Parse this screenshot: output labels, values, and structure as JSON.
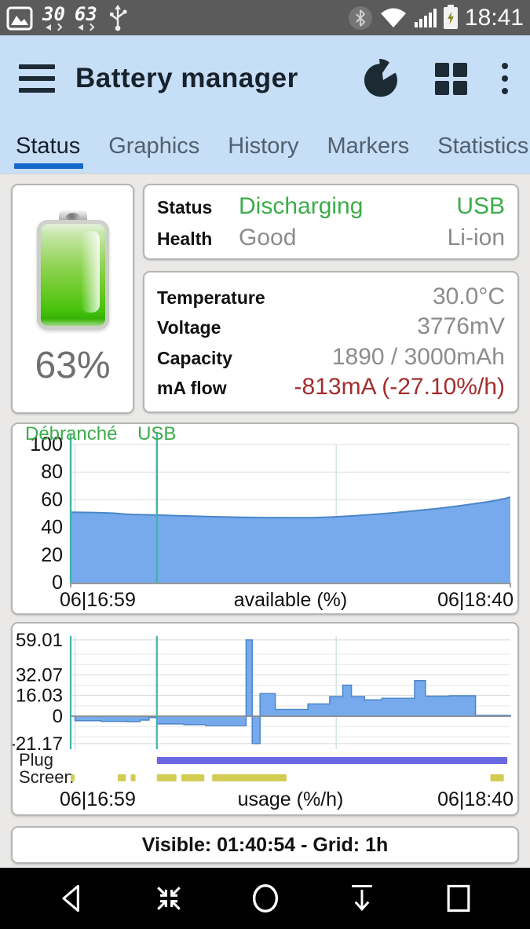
{
  "colors": {
    "green": "#3aad4a",
    "red": "#a32d2d",
    "chart_fill": "#76aaed",
    "chart_stroke": "#4a86c8",
    "marker_teal": "#3fb5aa",
    "plug_bar": "#6b68e3",
    "screen_bar": "#d2cc52",
    "tab_accent": "#1668cc"
  },
  "status_bar": {
    "temp_number": "30",
    "battery_number": "63",
    "time": "18:41",
    "icons": [
      "gallery-icon",
      "usb-icon",
      "bluetooth-icon",
      "wifi-icon",
      "signal-icon",
      "battery-charging-icon"
    ]
  },
  "app_bar": {
    "title": "Battery manager",
    "icons": [
      "menu-icon",
      "pie-chart-icon",
      "grid-icon",
      "overflow-icon"
    ]
  },
  "tabs": {
    "items": [
      {
        "label": "Status",
        "active": true
      },
      {
        "label": "Graphics",
        "active": false
      },
      {
        "label": "History",
        "active": false
      },
      {
        "label": "Markers",
        "active": false
      },
      {
        "label": "Statistics",
        "active": false
      }
    ]
  },
  "battery_panel": {
    "percent": "63%"
  },
  "status_panel": {
    "rows": [
      {
        "label": "Status",
        "value": "Discharging",
        "right": "USB"
      },
      {
        "label": "Health",
        "value": "Good",
        "right": "Li-ion"
      }
    ]
  },
  "info_panel": {
    "rows": [
      {
        "label": "Temperature",
        "value": "30.0°C"
      },
      {
        "label": "Voltage",
        "value": "3776mV"
      },
      {
        "label": "Capacity",
        "value": "1890 / 3000mAh"
      },
      {
        "label": "mA flow",
        "value": "-813mA (-27.10%/h)"
      }
    ]
  },
  "chart_data": [
    {
      "type": "area",
      "title": "available (%)",
      "x_start_label": "06|16:59",
      "x_axis_label": "available (%)",
      "x_end_label": "06|18:40",
      "xlim_minutes": [
        0,
        101
      ],
      "ylim": [
        0,
        100
      ],
      "yticks": [
        0,
        20,
        40,
        60,
        80,
        100
      ],
      "grid_minutes": [
        1,
        61
      ],
      "markers": [
        {
          "label": "Débranché",
          "min": 0
        },
        {
          "label": "USB",
          "min": 19.8
        }
      ],
      "points": [
        [
          0,
          51
        ],
        [
          6,
          50.7
        ],
        [
          10,
          50.3
        ],
        [
          12,
          49.7
        ],
        [
          14,
          49.4
        ],
        [
          19.8,
          48.9
        ],
        [
          24,
          48.5
        ],
        [
          28,
          48.1
        ],
        [
          33,
          47.7
        ],
        [
          38,
          47.4
        ],
        [
          44,
          47.1
        ],
        [
          50,
          47.0
        ],
        [
          56,
          47.1
        ],
        [
          60,
          47.5
        ],
        [
          63,
          48
        ],
        [
          66,
          48.6
        ],
        [
          69,
          49.3
        ],
        [
          72,
          50
        ],
        [
          75,
          50.8
        ],
        [
          78,
          51.7
        ],
        [
          81,
          52.6
        ],
        [
          84,
          53.6
        ],
        [
          87,
          54.7
        ],
        [
          90,
          55.9
        ],
        [
          93,
          57.2
        ],
        [
          96,
          58.6
        ],
        [
          98,
          59.7
        ],
        [
          100,
          61
        ],
        [
          101,
          62
        ]
      ]
    },
    {
      "type": "step-area",
      "title": "usage (%/h)",
      "x_start_label": "06|16:59",
      "x_axis_label": "usage (%/h)",
      "x_end_label": "06|18:40",
      "xlim_minutes": [
        0,
        101
      ],
      "ylim": [
        -25.5,
        62
      ],
      "yticks": [
        59.01,
        32.07,
        16.03,
        0,
        -21.17
      ],
      "minor_grid": [
        48,
        40,
        24,
        8,
        -8,
        -16
      ],
      "grid_minutes": [
        1,
        61
      ],
      "marker_minutes": [
        0,
        19.8
      ],
      "steps": [
        [
          0,
          0
        ],
        [
          1,
          -3.5
        ],
        [
          7,
          -4
        ],
        [
          13,
          -4.2
        ],
        [
          16,
          -3
        ],
        [
          18,
          -1
        ],
        [
          19.8,
          -6
        ],
        [
          26,
          -6.5
        ],
        [
          31,
          -7.2
        ],
        [
          40.3,
          59
        ],
        [
          41.7,
          -21.2
        ],
        [
          43.5,
          17.5
        ],
        [
          47,
          5.2
        ],
        [
          54.5,
          9.5
        ],
        [
          59.5,
          15.2
        ],
        [
          62.5,
          24
        ],
        [
          64.5,
          15.2
        ],
        [
          67.5,
          12.6
        ],
        [
          71.5,
          13.8
        ],
        [
          79,
          27.5
        ],
        [
          81.5,
          15.5
        ],
        [
          87,
          15.8
        ],
        [
          93,
          0.6
        ],
        [
          101,
          0.6
        ]
      ],
      "rows": [
        {
          "label": "Plug",
          "segments": [
            [
              19.8,
              100.3
            ]
          ]
        },
        {
          "label": "Screen",
          "segments": [
            [
              0,
              0.9
            ],
            [
              10.8,
              12.7
            ],
            [
              13.8,
              14.9
            ],
            [
              19.8,
              24.3
            ],
            [
              25.4,
              30.7
            ],
            [
              32.5,
              49.6
            ],
            [
              96.4,
              99.5
            ]
          ]
        }
      ]
    }
  ],
  "footer": {
    "text": "Visible: 01:40:54 - Grid: 1h"
  },
  "nav_bar": {
    "icons": [
      "back-icon",
      "collapse-windows-icon",
      "home-icon",
      "pulldown-icon",
      "recents-icon"
    ]
  }
}
